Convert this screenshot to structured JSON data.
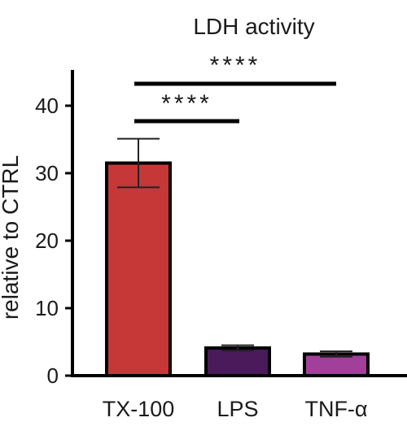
{
  "chart_data": {
    "type": "bar",
    "title": "LDH activity",
    "xlabel": "",
    "ylabel": "relative to CTRL",
    "ylim": [
      0,
      45
    ],
    "yticks": [
      0,
      10,
      20,
      30,
      40
    ],
    "ytick_labels": [
      "0",
      "10",
      "20",
      "30",
      "40"
    ],
    "grid": false,
    "categories": [
      "TX-100",
      "LPS",
      "TNF-α"
    ],
    "values": [
      31.5,
      4.1,
      3.2
    ],
    "errors": [
      3.6,
      0.4,
      0.4
    ],
    "colors": [
      "#c63737",
      "#4a1a5a",
      "#a0409a"
    ],
    "significance": [
      {
        "from": "TX-100",
        "to": "LPS",
        "label": "****"
      },
      {
        "from": "TX-100",
        "to": "TNF-α",
        "label": "****"
      }
    ]
  }
}
